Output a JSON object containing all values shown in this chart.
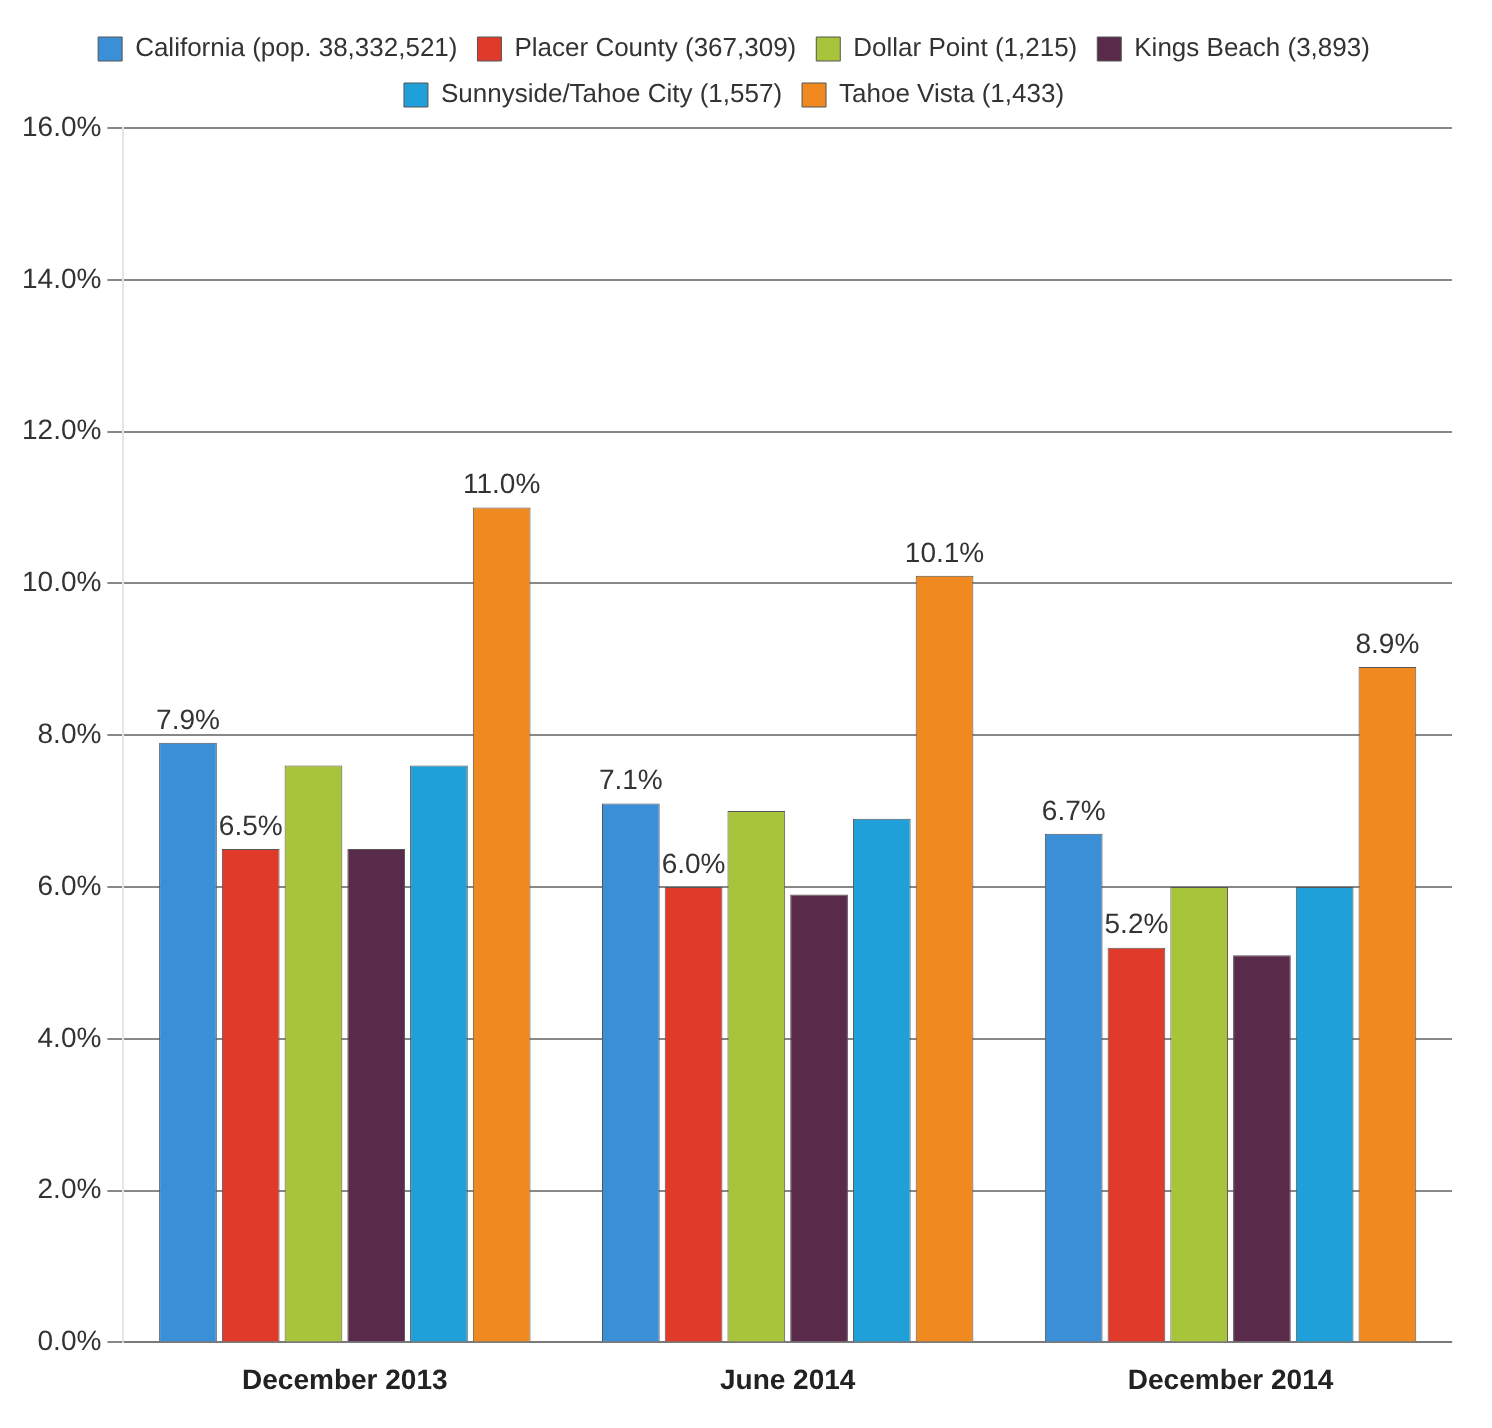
{
  "chart_data": {
    "type": "bar",
    "categories": [
      "December 2013",
      "June 2014",
      "December 2014"
    ],
    "series": [
      {
        "name": "California (pop. 38,332,521)",
        "color": "#3a8fd6",
        "values": [
          7.9,
          7.1,
          6.7
        ],
        "value_labels": [
          "7.9%",
          "7.1%",
          "6.7%"
        ]
      },
      {
        "name": "Placer County (367,309)",
        "color": "#e03a2a",
        "values": [
          6.5,
          6.0,
          5.2
        ],
        "value_labels": [
          "6.5%",
          "6.0%",
          "5.2%"
        ]
      },
      {
        "name": "Dollar Point (1,215)",
        "color": "#a8c43a",
        "values": [
          7.6,
          7.0,
          6.0
        ]
      },
      {
        "name": "Kings Beach (3,893)",
        "color": "#5a2a4a",
        "values": [
          6.5,
          5.9,
          5.1
        ]
      },
      {
        "name": "Sunnyside/Tahoe City (1,557)",
        "color": "#20a0d8",
        "values": [
          7.6,
          6.9,
          6.0
        ]
      },
      {
        "name": "Tahoe Vista (1,433)",
        "color": "#f08a20",
        "values": [
          11.0,
          10.1,
          8.9
        ],
        "value_labels": [
          "11.0%",
          "10.1%",
          "8.9%"
        ]
      }
    ],
    "ylim": [
      0,
      16
    ],
    "yticks": [
      {
        "value": 0,
        "label": "0.0%"
      },
      {
        "value": 2,
        "label": "2.0%"
      },
      {
        "value": 4,
        "label": "4.0%"
      },
      {
        "value": 6,
        "label": "6.0%"
      },
      {
        "value": 8,
        "label": "8.0%"
      },
      {
        "value": 10,
        "label": "10.0%"
      },
      {
        "value": 12,
        "label": "12.0%"
      },
      {
        "value": 14,
        "label": "14.0%"
      },
      {
        "value": 16,
        "label": "16.0%"
      }
    ],
    "grid": "y",
    "legend": "top"
  }
}
